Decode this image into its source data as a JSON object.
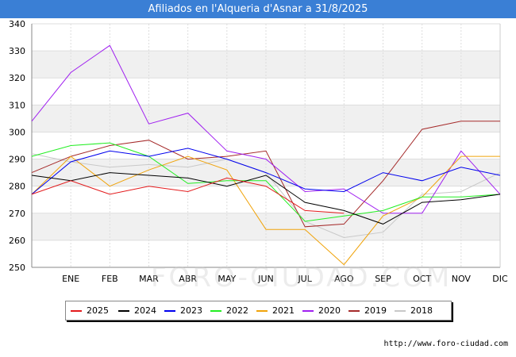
{
  "header": {
    "title": "Afiliados en l'Alqueria d'Asnar a 31/8/2025"
  },
  "footer": {
    "url": "http://www.foro-ciudad.com"
  },
  "watermark": {
    "text": "FORO-CIUDAD.COM"
  },
  "colors": {
    "title_bar": "#3a7fd5",
    "plot_band": "#f0f0f0",
    "grid": "#dddddd"
  },
  "chart_data": {
    "type": "line",
    "title": "Afiliados en l'Alqueria d'Asnar a 31/8/2025",
    "x_labels": [
      "",
      "ENE",
      "FEB",
      "MAR",
      "ABR",
      "MAY",
      "JUN",
      "JUL",
      "AGO",
      "SEP",
      "OCT",
      "NOV",
      "DIC"
    ],
    "ylim": [
      250,
      340
    ],
    "y_ticks": [
      250,
      260,
      270,
      280,
      290,
      300,
      310,
      320,
      330,
      340
    ],
    "grid": true,
    "legend_position": "bottom",
    "series": [
      {
        "name": "2025",
        "color": "#e31a1c",
        "values": [
          277,
          282,
          277,
          280,
          278,
          283,
          280,
          271,
          270,
          null,
          null,
          null,
          null
        ]
      },
      {
        "name": "2024",
        "color": "#000000",
        "values": [
          284,
          282,
          285,
          284,
          283,
          280,
          284,
          274,
          271,
          266,
          274,
          275,
          277
        ]
      },
      {
        "name": "2023",
        "color": "#0000ee",
        "values": [
          277,
          289,
          293,
          291,
          294,
          290,
          285,
          279,
          278,
          285,
          282,
          287,
          284
        ]
      },
      {
        "name": "2022",
        "color": "#22ee22",
        "values": [
          291,
          295,
          296,
          291,
          281,
          282,
          282,
          267,
          269,
          271,
          276,
          276,
          277
        ]
      },
      {
        "name": "2021",
        "color": "#f0a30a",
        "values": [
          277,
          291,
          280,
          286,
          291,
          286,
          264,
          264,
          251,
          269,
          276,
          291,
          291
        ]
      },
      {
        "name": "2020",
        "color": "#a020f0",
        "values": [
          304,
          322,
          332,
          303,
          307,
          293,
          290,
          278,
          279,
          270,
          270,
          293,
          277
        ]
      },
      {
        "name": "2019",
        "color": "#a52a2a",
        "values": [
          285,
          291,
          295,
          297,
          290,
          291,
          293,
          265,
          266,
          282,
          301,
          304,
          304
        ]
      },
      {
        "name": "2018",
        "color": "#c8c8c8",
        "values": [
          292,
          289,
          287,
          288,
          287,
          290,
          285,
          267,
          261,
          263,
          277,
          278,
          285
        ]
      }
    ]
  }
}
